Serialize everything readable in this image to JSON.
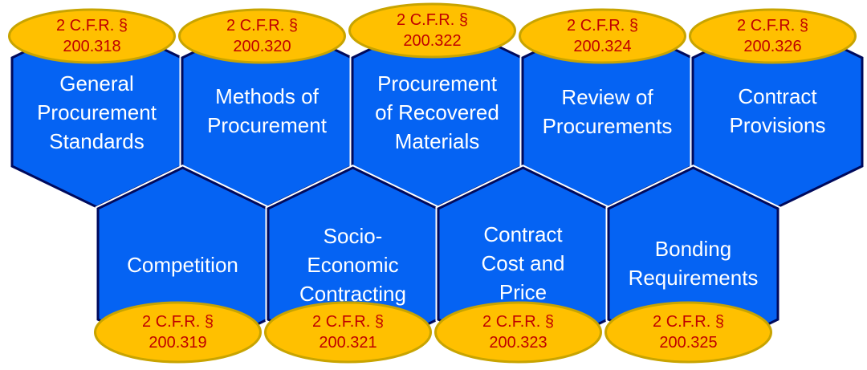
{
  "colors": {
    "hexagon_fill": "#0563f3",
    "hexagon_border": "#000a5c",
    "badge_fill": "#ffc000",
    "badge_text": "#c00000",
    "label_text": "#ffffff"
  },
  "top_row": [
    {
      "label": [
        "General",
        "Procurement",
        "Standards"
      ],
      "citation": [
        "2 C.F.R. §",
        "200.318"
      ]
    },
    {
      "label": [
        "Methods of",
        "Procurement"
      ],
      "citation": [
        "2 C.F.R. §",
        "200.320"
      ]
    },
    {
      "label": [
        "Procurement",
        "of Recovered",
        "Materials"
      ],
      "citation": [
        "2 C.F.R. §",
        "200.322"
      ]
    },
    {
      "label": [
        "Review of",
        "Procurements"
      ],
      "citation": [
        "2 C.F.R. §",
        "200.324"
      ]
    },
    {
      "label": [
        "Contract",
        "Provisions"
      ],
      "citation": [
        "2 C.F.R. §",
        "200.326"
      ]
    }
  ],
  "bottom_row": [
    {
      "label": [
        "Competition"
      ],
      "citation": [
        "2 C.F.R. §",
        "200.319"
      ]
    },
    {
      "label": [
        "Socio-",
        "Economic",
        "Contracting"
      ],
      "citation": [
        "2 C.F.R. §",
        "200.321"
      ]
    },
    {
      "label": [
        "Contract",
        "Cost and",
        "Price"
      ],
      "citation": [
        "2 C.F.R. §",
        "200.323"
      ]
    },
    {
      "label": [
        "Bonding",
        "Requirements"
      ],
      "citation": [
        "2 C.F.R. §",
        "200.325"
      ]
    }
  ]
}
